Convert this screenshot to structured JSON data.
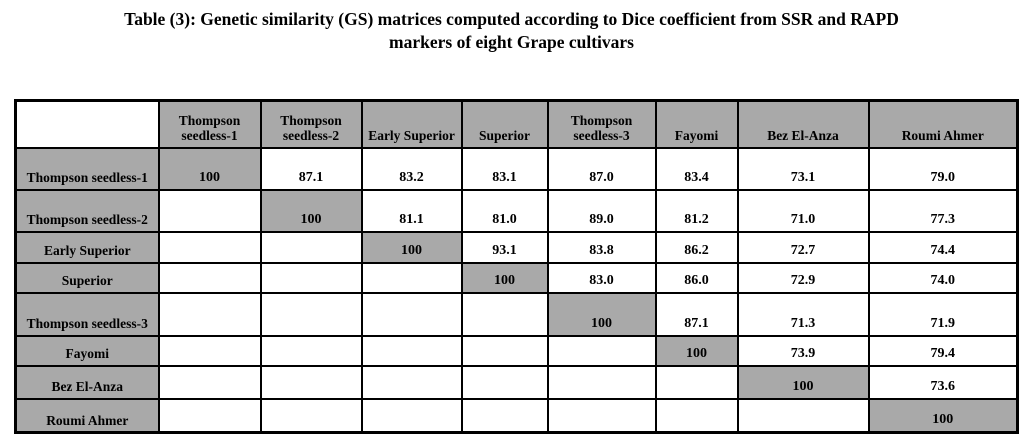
{
  "page": {
    "title_line1": "Table (3): Genetic similarity (GS) matrices computed according to Dice coefficient from SSR and RAPD",
    "title_line2": "markers of eight Grape cultivars"
  },
  "table": {
    "corner_label": "",
    "columns": [
      "Thompson seedless-1",
      "Thompson seedless-2",
      "Early Superior",
      "Superior",
      "Thompson seedless-3",
      "Fayomi",
      "Bez El-Anza",
      "Roumi Ahmer"
    ],
    "rows": [
      {
        "label": "Thompson seedless-1",
        "values": [
          "100",
          "87.1",
          "83.2",
          "83.1",
          "87.0",
          "83.4",
          "73.1",
          "79.0"
        ]
      },
      {
        "label": "Thompson seedless-2",
        "values": [
          "",
          "100",
          "81.1",
          "81.0",
          "89.0",
          "81.2",
          "71.0",
          "77.3"
        ]
      },
      {
        "label": "Early Superior",
        "values": [
          "",
          "",
          "100",
          "93.1",
          "83.8",
          "86.2",
          "72.7",
          "74.4"
        ]
      },
      {
        "label": "Superior",
        "values": [
          "",
          "",
          "",
          "100",
          "83.0",
          "86.0",
          "72.9",
          "74.0"
        ]
      },
      {
        "label": "Thompson seedless-3",
        "values": [
          "",
          "",
          "",
          "",
          "100",
          "87.1",
          "71.3",
          "71.9"
        ]
      },
      {
        "label": "Fayomi",
        "values": [
          "",
          "",
          "",
          "",
          "",
          "100",
          "73.9",
          "79.4"
        ]
      },
      {
        "label": "Bez El-Anza",
        "values": [
          "",
          "",
          "",
          "",
          "",
          "",
          "100",
          "73.6"
        ]
      },
      {
        "label": "Roumi Ahmer",
        "values": [
          "",
          "",
          "",
          "",
          "",
          "",
          "",
          "100"
        ]
      }
    ],
    "diagonal_value": "100"
  },
  "colors": {
    "cell_gray": "#a9a9a9",
    "border_black": "#000000",
    "page_bg": "#ffffff"
  }
}
